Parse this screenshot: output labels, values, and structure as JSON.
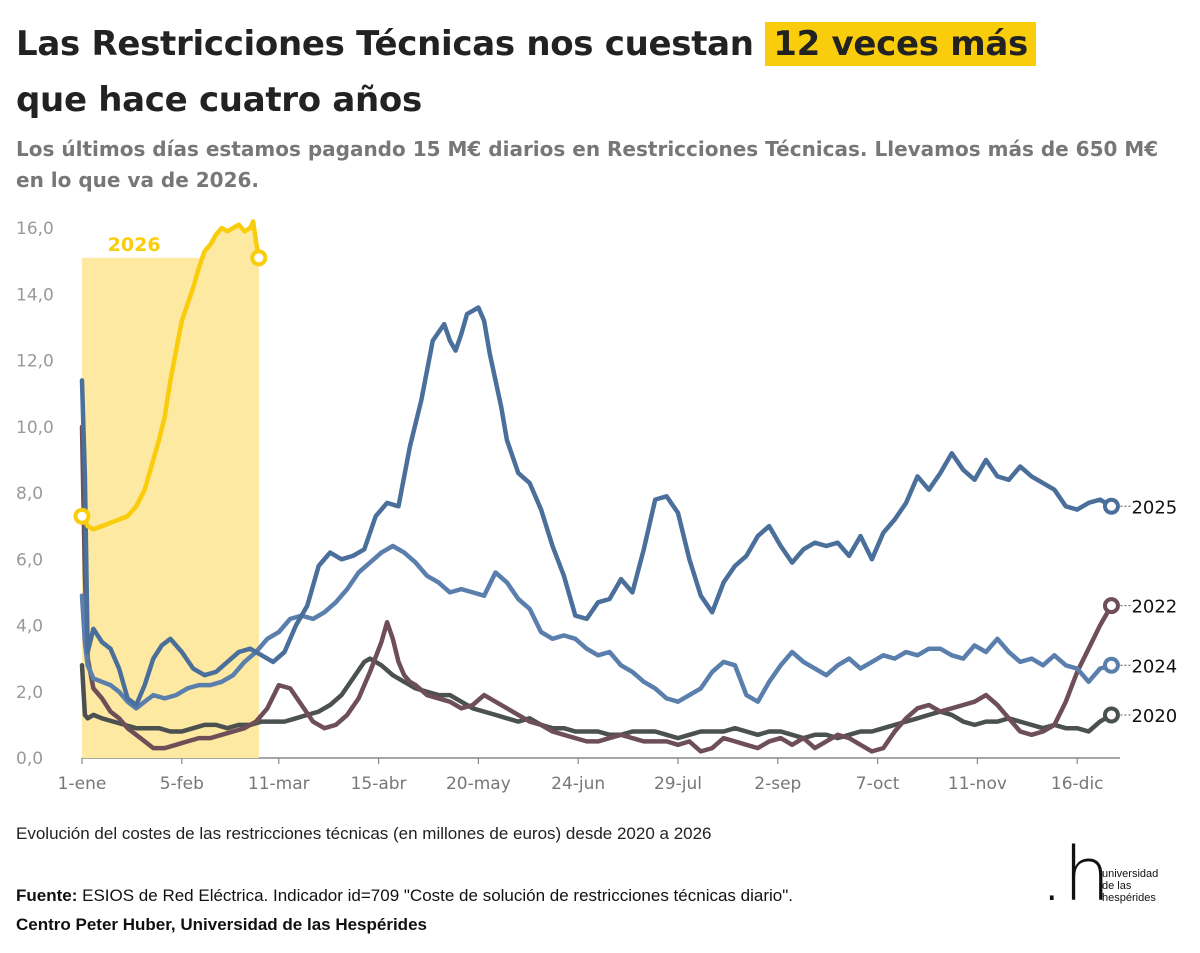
{
  "title": {
    "part1": "Las Restricciones Técnicas nos cuestan",
    "highlight": "12 veces más",
    "part2": "que hace cuatro años"
  },
  "subtitle": "Los últimos días estamos pagando 15 M€ diarios en Restricciones Técnicas. Llevamos más de 650 M€ en lo que va de 2026.",
  "footnote": "Evolución del costes de las restricciones técnicas (en millones de euros) desde 2020 a 2026",
  "source": {
    "label": "Fuente:",
    "text": "ESIOS de Red Eléctrica. Indicador id=709 \"Coste de solución de restricciones técnicas diario\".",
    "org": "Centro Peter Huber, Universidad de las Hespérides"
  },
  "logo": {
    "mark": ".h",
    "lines": [
      "universidad",
      "de las",
      "hespérides"
    ]
  },
  "colors": {
    "s2026": "#f9cd0b",
    "s2026_fill": "#fde9a1",
    "s2025": "#4b6f9b",
    "s2024": "#5a7fad",
    "s2022": "#6e4f58",
    "s2020": "#4b5050",
    "axis": "#888888",
    "tick_text": "#999999"
  },
  "chart_data": {
    "type": "line",
    "title": "",
    "xlabel": "",
    "ylabel": "",
    "ylim": [
      0,
      16
    ],
    "yticks": [
      "0,0",
      "2,0",
      "4,0",
      "6,0",
      "8,0",
      "10,0",
      "12,0",
      "14,0",
      "16,0"
    ],
    "ytick_values": [
      0,
      2,
      4,
      6,
      8,
      10,
      12,
      14,
      16
    ],
    "xlim": [
      1,
      365
    ],
    "xticks": [
      "1-ene",
      "5-feb",
      "11-mar",
      "15-abr",
      "20-may",
      "24-jun",
      "29-jul",
      "2-sep",
      "7-oct",
      "11-nov",
      "16-dic"
    ],
    "xtick_days": [
      1,
      36,
      70,
      105,
      140,
      175,
      210,
      245,
      280,
      315,
      350
    ],
    "grid": false,
    "highlight_range": [
      1,
      63
    ],
    "series": [
      {
        "name": "2026",
        "key": "s2026",
        "x": [
          1,
          3,
          5,
          8,
          11,
          14,
          17,
          20,
          23,
          26,
          28,
          30,
          32,
          34,
          36,
          38,
          40,
          42,
          44,
          46,
          48,
          50,
          52,
          54,
          56,
          58,
          60,
          61,
          62,
          63
        ],
        "values": [
          7.3,
          7.0,
          6.9,
          7.0,
          7.1,
          7.2,
          7.3,
          7.6,
          8.1,
          9.0,
          9.6,
          10.3,
          11.4,
          12.3,
          13.2,
          13.7,
          14.2,
          14.8,
          15.3,
          15.5,
          15.8,
          16.0,
          15.9,
          16.0,
          16.1,
          15.9,
          16.0,
          16.2,
          15.6,
          15.1
        ]
      },
      {
        "name": "2025",
        "key": "s2025",
        "x": [
          1,
          2,
          3,
          5,
          8,
          11,
          14,
          17,
          20,
          23,
          26,
          29,
          32,
          36,
          40,
          44,
          48,
          52,
          56,
          60,
          64,
          68,
          72,
          76,
          80,
          84,
          88,
          92,
          96,
          100,
          104,
          108,
          112,
          116,
          120,
          124,
          128,
          130,
          132,
          134,
          136,
          138,
          140,
          142,
          144,
          146,
          148,
          150,
          154,
          158,
          162,
          166,
          170,
          174,
          178,
          182,
          186,
          190,
          194,
          198,
          202,
          206,
          210,
          214,
          218,
          222,
          226,
          230,
          234,
          238,
          242,
          246,
          250,
          254,
          258,
          262,
          266,
          270,
          274,
          278,
          282,
          286,
          290,
          294,
          298,
          302,
          306,
          310,
          314,
          318,
          322,
          326,
          330,
          334,
          338,
          342,
          346,
          350,
          354,
          358,
          362
        ],
        "values": [
          11.4,
          8.5,
          3.2,
          3.9,
          3.5,
          3.3,
          2.7,
          1.8,
          1.6,
          2.2,
          3.0,
          3.4,
          3.6,
          3.2,
          2.7,
          2.5,
          2.6,
          2.9,
          3.2,
          3.3,
          3.1,
          2.9,
          3.2,
          4.0,
          4.6,
          5.8,
          6.2,
          6.0,
          6.1,
          6.3,
          7.3,
          7.7,
          7.6,
          9.4,
          10.8,
          12.6,
          13.1,
          12.6,
          12.3,
          12.8,
          13.4,
          13.5,
          13.6,
          13.2,
          12.2,
          11.4,
          10.6,
          9.6,
          8.6,
          8.3,
          7.5,
          6.4,
          5.5,
          4.3,
          4.2,
          4.7,
          4.8,
          5.4,
          5.0,
          6.3,
          7.8,
          7.9,
          7.4,
          6.0,
          4.9,
          4.4,
          5.3,
          5.8,
          6.1,
          6.7,
          7.0,
          6.4,
          5.9,
          6.3,
          6.5,
          6.4,
          6.5,
          6.1,
          6.7,
          6.0,
          6.8,
          7.2,
          7.7,
          8.5,
          8.1,
          8.6,
          9.2,
          8.7,
          8.4,
          9.0,
          8.5,
          8.4,
          8.8,
          8.5,
          8.3,
          8.1,
          7.6,
          7.5,
          7.7,
          7.8,
          7.6
        ]
      },
      {
        "name": "2024",
        "key": "s2024",
        "x": [
          1,
          2,
          3,
          5,
          8,
          11,
          14,
          17,
          20,
          23,
          26,
          30,
          34,
          38,
          42,
          46,
          50,
          54,
          58,
          62,
          66,
          70,
          74,
          78,
          82,
          86,
          90,
          94,
          98,
          102,
          106,
          110,
          114,
          118,
          122,
          126,
          130,
          134,
          138,
          142,
          146,
          150,
          154,
          158,
          162,
          166,
          170,
          174,
          178,
          182,
          186,
          190,
          194,
          198,
          202,
          206,
          210,
          214,
          218,
          222,
          226,
          230,
          234,
          238,
          242,
          246,
          250,
          254,
          258,
          262,
          266,
          270,
          274,
          278,
          282,
          286,
          290,
          294,
          298,
          302,
          306,
          310,
          314,
          318,
          322,
          326,
          330,
          334,
          338,
          342,
          346,
          350,
          354,
          358,
          362
        ],
        "values": [
          4.9,
          3.5,
          2.8,
          2.4,
          2.3,
          2.2,
          2.0,
          1.7,
          1.5,
          1.7,
          1.9,
          1.8,
          1.9,
          2.1,
          2.2,
          2.2,
          2.3,
          2.5,
          2.9,
          3.2,
          3.6,
          3.8,
          4.2,
          4.3,
          4.2,
          4.4,
          4.7,
          5.1,
          5.6,
          5.9,
          6.2,
          6.4,
          6.2,
          5.9,
          5.5,
          5.3,
          5.0,
          5.1,
          5.0,
          4.9,
          5.6,
          5.3,
          4.8,
          4.5,
          3.8,
          3.6,
          3.7,
          3.6,
          3.3,
          3.1,
          3.2,
          2.8,
          2.6,
          2.3,
          2.1,
          1.8,
          1.7,
          1.9,
          2.1,
          2.6,
          2.9,
          2.8,
          1.9,
          1.7,
          2.3,
          2.8,
          3.2,
          2.9,
          2.7,
          2.5,
          2.8,
          3.0,
          2.7,
          2.9,
          3.1,
          3.0,
          3.2,
          3.1,
          3.3,
          3.3,
          3.1,
          3.0,
          3.4,
          3.2,
          3.6,
          3.2,
          2.9,
          3.0,
          2.8,
          3.1,
          2.8,
          2.7,
          2.3,
          2.7,
          2.8
        ]
      },
      {
        "name": "2022",
        "key": "s2022",
        "x": [
          1,
          2,
          3,
          5,
          8,
          11,
          14,
          17,
          20,
          23,
          26,
          30,
          34,
          38,
          42,
          46,
          50,
          54,
          58,
          62,
          66,
          70,
          74,
          78,
          82,
          86,
          90,
          94,
          98,
          102,
          106,
          108,
          110,
          112,
          114,
          116,
          118,
          122,
          126,
          130,
          134,
          138,
          142,
          146,
          150,
          154,
          158,
          162,
          166,
          170,
          174,
          178,
          182,
          186,
          190,
          194,
          198,
          202,
          206,
          210,
          214,
          218,
          222,
          226,
          230,
          234,
          238,
          242,
          246,
          250,
          254,
          258,
          262,
          266,
          270,
          274,
          278,
          282,
          286,
          290,
          294,
          298,
          302,
          306,
          310,
          314,
          318,
          322,
          326,
          330,
          334,
          338,
          342,
          346,
          350,
          354,
          358,
          362
        ],
        "values": [
          10.0,
          5.5,
          3.0,
          2.1,
          1.8,
          1.4,
          1.2,
          0.9,
          0.7,
          0.5,
          0.3,
          0.3,
          0.4,
          0.5,
          0.6,
          0.6,
          0.7,
          0.8,
          0.9,
          1.1,
          1.5,
          2.2,
          2.1,
          1.6,
          1.1,
          0.9,
          1.0,
          1.3,
          1.8,
          2.6,
          3.5,
          4.1,
          3.6,
          2.9,
          2.5,
          2.3,
          2.2,
          1.9,
          1.8,
          1.7,
          1.5,
          1.6,
          1.9,
          1.7,
          1.5,
          1.3,
          1.1,
          1.0,
          0.8,
          0.7,
          0.6,
          0.5,
          0.5,
          0.6,
          0.7,
          0.6,
          0.5,
          0.5,
          0.5,
          0.4,
          0.5,
          0.2,
          0.3,
          0.6,
          0.5,
          0.4,
          0.3,
          0.5,
          0.6,
          0.4,
          0.6,
          0.3,
          0.5,
          0.7,
          0.6,
          0.4,
          0.2,
          0.3,
          0.8,
          1.2,
          1.5,
          1.6,
          1.4,
          1.5,
          1.6,
          1.7,
          1.9,
          1.6,
          1.2,
          0.8,
          0.7,
          0.8,
          1.0,
          1.7,
          2.6,
          3.3,
          4.0,
          4.6
        ]
      },
      {
        "name": "2020",
        "key": "s2020",
        "x": [
          1,
          2,
          3,
          5,
          8,
          12,
          16,
          20,
          24,
          28,
          32,
          36,
          40,
          44,
          48,
          52,
          56,
          60,
          64,
          68,
          72,
          76,
          80,
          84,
          88,
          92,
          96,
          100,
          102,
          104,
          106,
          110,
          114,
          118,
          122,
          126,
          130,
          134,
          138,
          142,
          146,
          150,
          154,
          158,
          162,
          166,
          170,
          174,
          178,
          182,
          186,
          190,
          194,
          198,
          202,
          206,
          210,
          214,
          218,
          222,
          226,
          230,
          234,
          238,
          242,
          246,
          250,
          254,
          258,
          262,
          266,
          270,
          274,
          278,
          282,
          286,
          290,
          294,
          298,
          302,
          306,
          310,
          314,
          318,
          322,
          326,
          330,
          334,
          338,
          342,
          346,
          350,
          354,
          358,
          362
        ],
        "values": [
          2.8,
          1.3,
          1.2,
          1.3,
          1.2,
          1.1,
          1.0,
          0.9,
          0.9,
          0.9,
          0.8,
          0.8,
          0.9,
          1.0,
          1.0,
          0.9,
          1.0,
          1.0,
          1.1,
          1.1,
          1.1,
          1.2,
          1.3,
          1.4,
          1.6,
          1.9,
          2.4,
          2.9,
          3.0,
          2.9,
          2.8,
          2.5,
          2.3,
          2.1,
          2.0,
          1.9,
          1.9,
          1.7,
          1.5,
          1.4,
          1.3,
          1.2,
          1.1,
          1.2,
          1.0,
          0.9,
          0.9,
          0.8,
          0.8,
          0.8,
          0.7,
          0.7,
          0.8,
          0.8,
          0.8,
          0.7,
          0.6,
          0.7,
          0.8,
          0.8,
          0.8,
          0.9,
          0.8,
          0.7,
          0.8,
          0.8,
          0.7,
          0.6,
          0.7,
          0.7,
          0.6,
          0.7,
          0.8,
          0.8,
          0.9,
          1.0,
          1.1,
          1.2,
          1.3,
          1.4,
          1.3,
          1.1,
          1.0,
          1.1,
          1.1,
          1.2,
          1.1,
          1.0,
          0.9,
          1.0,
          0.9,
          0.9,
          0.8,
          1.1,
          1.3
        ]
      }
    ]
  }
}
